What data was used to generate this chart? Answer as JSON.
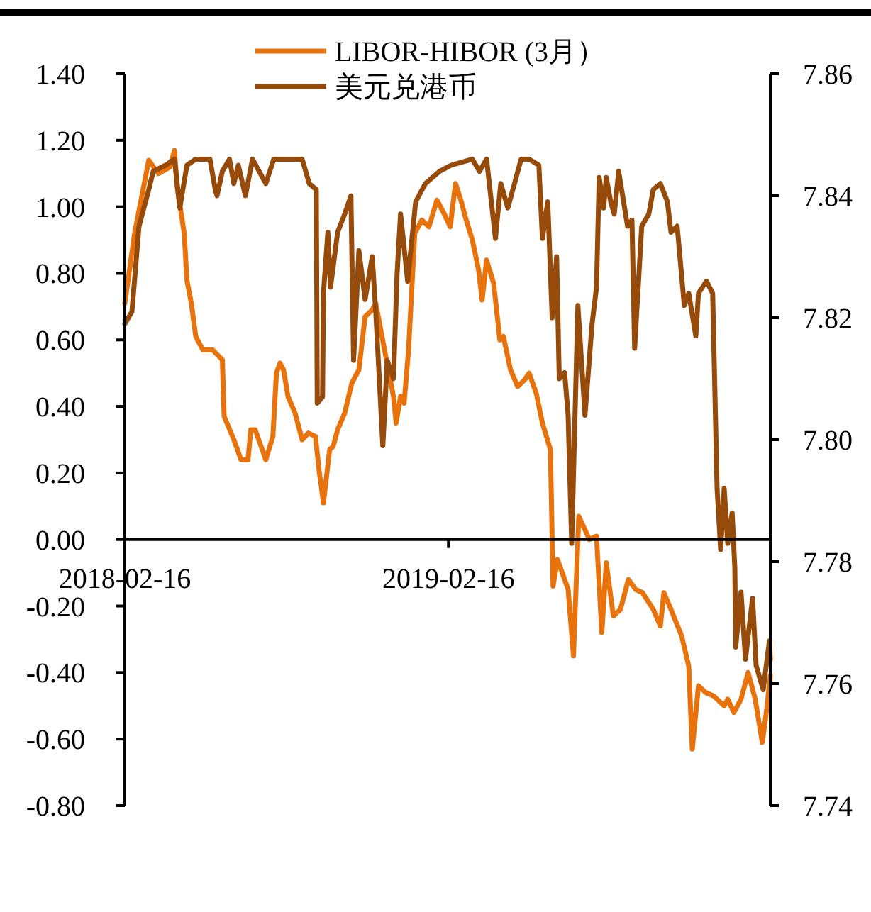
{
  "chart_data": {
    "type": "line",
    "legend": "top",
    "grid": false,
    "line_style": "solid",
    "marker": "none",
    "xlim": [
      "2018-02-16",
      "2020-02-14"
    ],
    "xticks": [
      "2018-02-16",
      "2019-02-16"
    ],
    "ylim": [
      -0.8,
      1.4
    ],
    "yticks": [
      {
        "value": -0.8,
        "label": "-0.80"
      },
      {
        "value": -0.6,
        "label": "-0.60"
      },
      {
        "value": -0.4,
        "label": "-0.40"
      },
      {
        "value": -0.2,
        "label": "-0.20"
      },
      {
        "value": 0,
        "label": "0.00"
      },
      {
        "value": 0.2,
        "label": "0.20"
      },
      {
        "value": 0.4,
        "label": "0.40"
      },
      {
        "value": 0.6,
        "label": "0.60"
      },
      {
        "value": 0.8,
        "label": "0.80"
      },
      {
        "value": 1,
        "label": "1.00"
      },
      {
        "value": 1.2,
        "label": "1.20"
      },
      {
        "value": 1.4,
        "label": "1.40"
      }
    ],
    "y2lim": [
      7.74,
      7.86
    ],
    "y2ticks": [
      {
        "value": 7.74,
        "label": "7.74"
      },
      {
        "value": 7.76,
        "label": "7.76"
      },
      {
        "value": 7.78,
        "label": "7.78"
      },
      {
        "value": 7.8,
        "label": "7.80"
      },
      {
        "value": 7.82,
        "label": "7.82"
      },
      {
        "value": 7.84,
        "label": "7.84"
      },
      {
        "value": 7.86,
        "label": "7.86"
      }
    ],
    "series": [
      {
        "name": "LIBOR-HIBOR (3月）",
        "color": "#e8720c",
        "x": [
          "2018-02-16",
          "2018-02-27",
          "2018-03-15",
          "2018-03-26",
          "2018-04-08",
          "2018-04-13",
          "2018-04-16",
          "2018-04-24",
          "2018-04-27",
          "2018-05-02",
          "2018-05-07",
          "2018-05-15",
          "2018-05-26",
          "2018-06-06",
          "2018-06-08",
          "2018-06-19",
          "2018-06-27",
          "2018-07-05",
          "2018-07-08",
          "2018-07-13",
          "2018-07-25",
          "2018-08-02",
          "2018-08-06",
          "2018-08-10",
          "2018-08-14",
          "2018-08-19",
          "2018-08-27",
          "2018-09-04",
          "2018-09-11",
          "2018-09-19",
          "2018-09-23",
          "2018-09-28",
          "2018-10-05",
          "2018-10-09",
          "2018-10-14",
          "2018-10-22",
          "2018-10-30",
          "2018-11-07",
          "2018-11-14",
          "2018-11-22",
          "2018-11-26",
          "2018-12-08",
          "2018-12-16",
          "2018-12-19",
          "2018-12-24",
          "2018-12-28",
          "2019-01-02",
          "2019-01-09",
          "2019-01-17",
          "2019-01-25",
          "2019-02-03",
          "2019-02-11",
          "2019-02-18",
          "2019-02-24",
          "2019-03-02",
          "2019-03-07",
          "2019-03-15",
          "2019-03-22",
          "2019-03-26",
          "2019-03-31",
          "2019-04-08",
          "2019-04-15",
          "2019-04-19",
          "2019-04-27",
          "2019-05-05",
          "2019-05-13",
          "2019-05-18",
          "2019-05-26",
          "2019-06-02",
          "2019-06-11",
          "2019-06-13",
          "2019-06-14",
          "2019-06-19",
          "2019-07-01",
          "2019-07-07",
          "2019-07-13",
          "2019-07-25",
          "2019-08-02",
          "2019-08-08",
          "2019-08-13",
          "2019-08-21",
          "2019-08-29",
          "2019-09-07",
          "2019-09-15",
          "2019-09-23",
          "2019-10-05",
          "2019-10-13",
          "2019-10-17",
          "2019-10-25",
          "2019-11-06",
          "2019-11-14",
          "2019-11-18",
          "2019-11-25",
          "2019-12-03",
          "2019-12-12",
          "2019-12-24",
          "2019-12-28",
          "2020-01-04",
          "2020-01-12",
          "2020-01-20",
          "2020-01-28",
          "2020-02-05",
          "2020-02-10",
          "2020-02-14"
        ],
        "values": [
          0.71,
          0.92,
          1.14,
          1.1,
          1.12,
          1.17,
          1.06,
          0.92,
          0.78,
          0.71,
          0.61,
          0.57,
          0.57,
          0.54,
          0.37,
          0.3,
          0.24,
          0.24,
          0.33,
          0.33,
          0.24,
          0.31,
          0.5,
          0.53,
          0.51,
          0.43,
          0.38,
          0.3,
          0.32,
          0.31,
          0.21,
          0.11,
          0.27,
          0.28,
          0.33,
          0.38,
          0.47,
          0.51,
          0.67,
          0.69,
          0.71,
          0.54,
          0.43,
          0.35,
          0.43,
          0.41,
          0.57,
          0.92,
          0.96,
          0.94,
          1.02,
          0.98,
          0.94,
          1.07,
          1.02,
          0.97,
          0.9,
          0.81,
          0.72,
          0.84,
          0.77,
          0.6,
          0.61,
          0.51,
          0.46,
          0.48,
          0.5,
          0.44,
          0.35,
          0.27,
          0.0,
          -0.14,
          -0.06,
          -0.15,
          -0.35,
          0.07,
          0.0,
          0.01,
          -0.28,
          -0.07,
          -0.23,
          -0.21,
          -0.12,
          -0.15,
          -0.16,
          -0.21,
          -0.26,
          -0.16,
          -0.21,
          -0.29,
          -0.38,
          -0.63,
          -0.44,
          -0.46,
          -0.47,
          -0.5,
          -0.48,
          -0.52,
          -0.48,
          -0.4,
          -0.48,
          -0.61,
          -0.51,
          -0.41
        ]
      },
      {
        "name": "美元兑港币",
        "color": "#964b0a",
        "axis": "y2",
        "x": [
          "2018-02-16",
          "2018-02-24",
          "2018-03-04",
          "2018-03-15",
          "2018-03-20",
          "2018-04-03",
          "2018-04-13",
          "2018-04-19",
          "2018-04-27",
          "2018-05-07",
          "2018-05-23",
          "2018-05-29",
          "2018-05-31",
          "2018-06-06",
          "2018-06-14",
          "2018-06-19",
          "2018-06-24",
          "2018-07-02",
          "2018-07-10",
          "2018-07-25",
          "2018-08-03",
          "2018-08-22",
          "2018-09-04",
          "2018-09-12",
          "2018-09-20",
          "2018-09-21",
          "2018-09-27",
          "2018-09-28",
          "2018-10-03",
          "2018-10-06",
          "2018-10-14",
          "2018-10-22",
          "2018-10-29",
          "2018-11-01",
          "2018-11-07",
          "2018-11-14",
          "2018-11-22",
          "2018-11-26",
          "2018-12-04",
          "2018-12-09",
          "2018-12-16",
          "2018-12-20",
          "2018-12-24",
          "2019-01-01",
          "2019-01-10",
          "2019-01-21",
          "2019-02-06",
          "2019-02-19",
          "2019-03-15",
          "2019-03-23",
          "2019-03-31",
          "2019-04-10",
          "2019-04-16",
          "2019-04-24",
          "2019-05-09",
          "2019-05-18",
          "2019-05-29",
          "2019-06-02",
          "2019-06-08",
          "2019-06-13",
          "2019-06-18",
          "2019-06-21",
          "2019-06-27",
          "2019-07-01",
          "2019-07-05",
          "2019-07-12",
          "2019-07-20",
          "2019-07-28",
          "2019-08-02",
          "2019-08-05",
          "2019-08-10",
          "2019-08-13",
          "2019-08-18",
          "2019-08-22",
          "2019-08-27",
          "2019-09-06",
          "2019-09-11",
          "2019-09-14",
          "2019-09-22",
          "2019-09-30",
          "2019-10-05",
          "2019-10-13",
          "2019-10-21",
          "2019-10-25",
          "2019-11-01",
          "2019-11-09",
          "2019-11-14",
          "2019-11-22",
          "2019-11-25",
          "2019-12-04",
          "2019-12-11",
          "2019-12-16",
          "2019-12-20",
          "2019-12-24",
          "2019-12-28",
          "2020-01-02",
          "2020-01-05",
          "2020-01-06",
          "2020-01-12",
          "2020-01-17",
          "2020-01-25",
          "2020-01-29",
          "2020-02-06",
          "2020-02-13",
          "2020-02-14"
        ],
        "values": [
          7.819,
          7.821,
          7.835,
          7.841,
          7.844,
          7.845,
          7.846,
          7.838,
          7.845,
          7.846,
          7.846,
          7.841,
          7.84,
          7.844,
          7.846,
          7.842,
          7.845,
          7.84,
          7.846,
          7.842,
          7.846,
          7.846,
          7.846,
          7.842,
          7.841,
          7.806,
          7.807,
          7.824,
          7.834,
          7.825,
          7.834,
          7.837,
          7.84,
          7.813,
          7.831,
          7.823,
          7.83,
          7.821,
          7.799,
          7.813,
          7.81,
          7.827,
          7.837,
          7.826,
          7.839,
          7.842,
          7.844,
          7.845,
          7.846,
          7.844,
          7.846,
          7.833,
          7.842,
          7.838,
          7.846,
          7.846,
          7.845,
          7.833,
          7.839,
          7.82,
          7.83,
          7.81,
          7.811,
          7.804,
          7.783,
          7.822,
          7.804,
          7.819,
          7.825,
          7.843,
          7.838,
          7.843,
          7.839,
          7.837,
          7.844,
          7.835,
          7.836,
          7.815,
          7.835,
          7.837,
          7.841,
          7.842,
          7.839,
          7.834,
          7.835,
          7.822,
          7.824,
          7.817,
          7.824,
          7.826,
          7.824,
          7.792,
          7.782,
          7.792,
          7.783,
          7.788,
          7.779,
          7.766,
          7.775,
          7.764,
          7.774,
          7.763,
          7.759,
          7.767,
          7.764
        ]
      }
    ]
  }
}
